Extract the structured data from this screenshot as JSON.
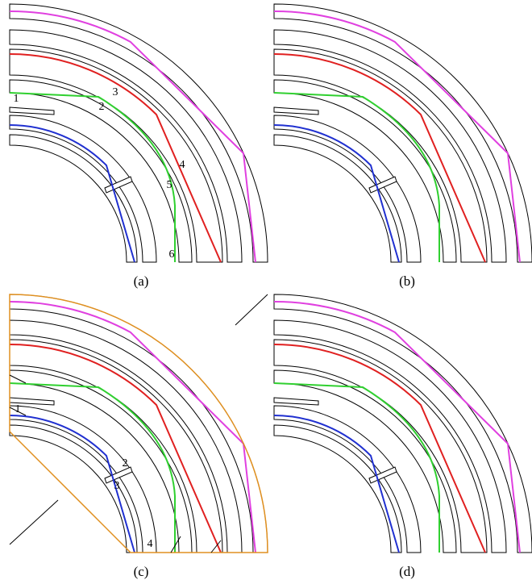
{
  "panels": [
    {
      "caption": "(a)",
      "labels": [
        "1",
        "2",
        "3",
        "4",
        "5",
        "6"
      ]
    },
    {
      "caption": "(b)"
    },
    {
      "caption": "(c)",
      "labels": [
        "1",
        "2",
        "3",
        "4"
      ]
    },
    {
      "caption": "(d)"
    }
  ]
}
